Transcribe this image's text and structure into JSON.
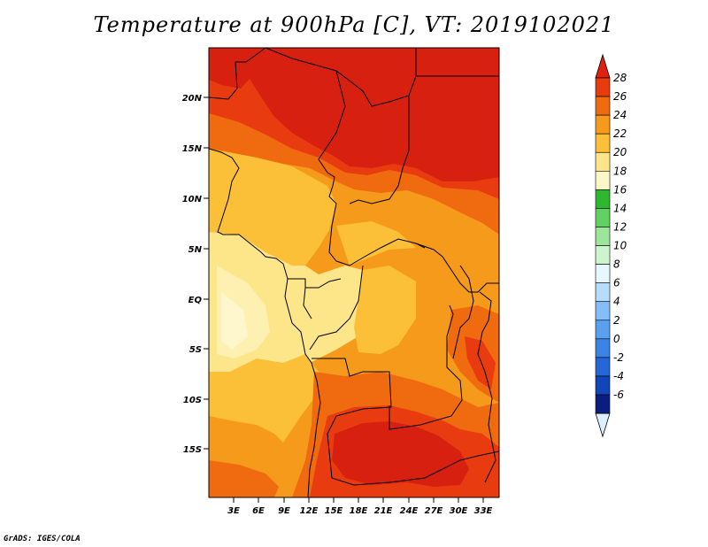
{
  "title": "Temperature at 900hPa [C], VT: 2019102021",
  "credit": "GrADS: IGES/COLA",
  "map": {
    "lat_labels": [
      "20N",
      "15N",
      "10N",
      "5N",
      "EQ",
      "5S",
      "10S",
      "15S"
    ],
    "lon_labels": [
      "3E",
      "6E",
      "9E",
      "12E",
      "15E",
      "18E",
      "21E",
      "24E",
      "27E",
      "30E",
      "33E"
    ]
  },
  "colorbar": {
    "labels": [
      "28",
      "26",
      "24",
      "22",
      "20",
      "18",
      "16",
      "14",
      "12",
      "10",
      "8",
      "6",
      "4",
      "2",
      "0",
      "-2",
      "-4",
      "-6"
    ],
    "colors": [
      "#d82010",
      "#e83c10",
      "#f06a10",
      "#f59a1a",
      "#fbc038",
      "#fde58a",
      "#fdf7c8",
      "#2fb82f",
      "#62d062",
      "#9be69b",
      "#ccf5cc",
      "#e6f7ff",
      "#b6dcff",
      "#84bdf7",
      "#5aa0ee",
      "#3c84e4",
      "#2766d6",
      "#1245b8",
      "#0a1e80"
    ],
    "over_color": "#e02010",
    "under_color": "#ddeeff"
  }
}
